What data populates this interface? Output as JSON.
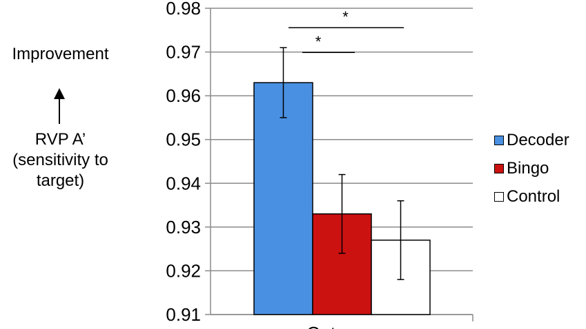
{
  "chart_data": {
    "type": "bar",
    "categories": [
      "Outcome"
    ],
    "series": [
      {
        "name": "Decoder",
        "values": [
          0.963
        ],
        "error": [
          0.008
        ],
        "color": "#4a90e2"
      },
      {
        "name": "Bingo",
        "values": [
          0.933
        ],
        "error": [
          0.009
        ],
        "color": "#cc1111"
      },
      {
        "name": "Control",
        "values": [
          0.927
        ],
        "error": [
          0.009
        ],
        "color": "#ffffff"
      }
    ],
    "ylim": [
      0.91,
      0.98
    ],
    "yticks": [
      "0.98",
      "0.97",
      "0.96",
      "0.95",
      "0.94",
      "0.93",
      "0.92",
      "0.91"
    ],
    "xlabel": "Outcome",
    "ylabel_lines": [
      "RVP A’",
      "(sensitivity to",
      "target)"
    ],
    "improvement_label": "Improvement",
    "significance": [
      {
        "between": [
          "Decoder",
          "Control"
        ],
        "label": "*"
      },
      {
        "between": [
          "Decoder",
          "Bingo"
        ],
        "label": "*"
      }
    ],
    "grid": true,
    "legend": "right"
  }
}
